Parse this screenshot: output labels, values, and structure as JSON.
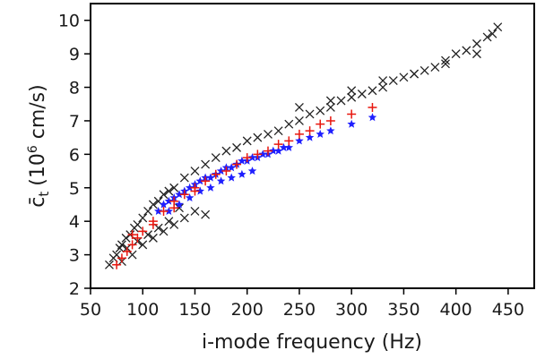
{
  "chart_data": {
    "type": "scatter",
    "title": "",
    "xlabel": "i-mode frequency (Hz)",
    "ylabel": "c̄_t (10^6 cm/s)",
    "ylabel_parts": {
      "symbol": "c̄",
      "subscript": "t",
      "open": "(10",
      "exponent": "6",
      "unit": " cm/s)"
    },
    "xlim": [
      50,
      475
    ],
    "ylim": [
      2,
      10.5
    ],
    "xticks": [
      50,
      100,
      150,
      200,
      250,
      300,
      350,
      400,
      450
    ],
    "yticks": [
      2,
      3,
      4,
      5,
      6,
      7,
      8,
      9,
      10
    ],
    "grid": false,
    "legend": "none",
    "series": [
      {
        "marker": "x",
        "color": "#222222",
        "x": [
          68,
          72,
          75,
          78,
          80,
          84,
          88,
          92,
          95,
          100,
          105,
          110,
          115,
          120,
          125,
          130,
          140,
          150,
          160,
          170,
          180,
          190,
          200,
          210,
          220,
          230,
          240,
          250,
          260,
          270,
          280,
          290,
          300,
          310,
          320,
          330,
          340,
          350,
          360,
          370,
          380,
          390,
          400,
          410,
          420,
          430,
          440,
          80,
          90,
          100,
          110,
          120,
          130,
          140,
          150,
          160,
          85,
          95,
          105,
          115,
          125,
          135,
          250,
          280,
          300,
          330,
          360,
          390,
          420,
          435
        ],
        "y": [
          2.7,
          2.9,
          3.0,
          3.2,
          3.3,
          3.5,
          3.6,
          3.8,
          3.9,
          4.1,
          4.3,
          4.5,
          4.6,
          4.8,
          4.9,
          5.0,
          5.3,
          5.5,
          5.7,
          5.9,
          6.1,
          6.2,
          6.4,
          6.5,
          6.6,
          6.7,
          6.9,
          7.0,
          7.2,
          7.3,
          7.4,
          7.6,
          7.7,
          7.8,
          7.9,
          8.0,
          8.2,
          8.3,
          8.4,
          8.5,
          8.6,
          8.8,
          9.0,
          9.1,
          9.3,
          9.5,
          9.8,
          2.8,
          3.0,
          3.3,
          3.5,
          3.7,
          3.9,
          4.1,
          4.3,
          4.2,
          3.2,
          3.4,
          3.6,
          3.8,
          4.0,
          4.4,
          7.4,
          7.6,
          7.9,
          8.2,
          8.4,
          8.7,
          9.0,
          9.6
        ]
      },
      {
        "marker": "star",
        "color": "#1f1fff",
        "x": [
          115,
          120,
          125,
          130,
          135,
          140,
          145,
          150,
          155,
          160,
          165,
          170,
          175,
          180,
          185,
          190,
          195,
          200,
          205,
          210,
          215,
          220,
          225,
          230,
          235,
          240,
          250,
          260,
          270,
          280,
          300,
          320,
          125,
          135,
          145,
          155,
          165,
          175,
          185,
          195,
          205
        ],
        "y": [
          4.3,
          4.5,
          4.6,
          4.7,
          4.8,
          4.9,
          5.0,
          5.1,
          5.2,
          5.3,
          5.3,
          5.4,
          5.5,
          5.6,
          5.6,
          5.7,
          5.8,
          5.8,
          5.9,
          5.9,
          6.0,
          6.0,
          6.1,
          6.1,
          6.2,
          6.2,
          6.4,
          6.5,
          6.6,
          6.7,
          6.9,
          7.1,
          4.3,
          4.5,
          4.7,
          4.9,
          5.0,
          5.2,
          5.3,
          5.4,
          5.5
        ]
      },
      {
        "marker": "plus",
        "color": "#e8170f",
        "x": [
          75,
          80,
          85,
          90,
          95,
          100,
          110,
          120,
          130,
          140,
          150,
          160,
          170,
          180,
          190,
          200,
          210,
          220,
          230,
          240,
          250,
          260,
          270,
          280,
          300,
          320,
          90,
          110,
          130,
          150
        ],
        "y": [
          2.7,
          2.9,
          3.1,
          3.3,
          3.5,
          3.7,
          4.0,
          4.3,
          4.6,
          4.8,
          5.0,
          5.2,
          5.4,
          5.5,
          5.7,
          5.9,
          6.0,
          6.1,
          6.3,
          6.4,
          6.6,
          6.7,
          6.9,
          7.0,
          7.2,
          7.4,
          3.6,
          3.9,
          4.4,
          4.9
        ]
      }
    ]
  }
}
